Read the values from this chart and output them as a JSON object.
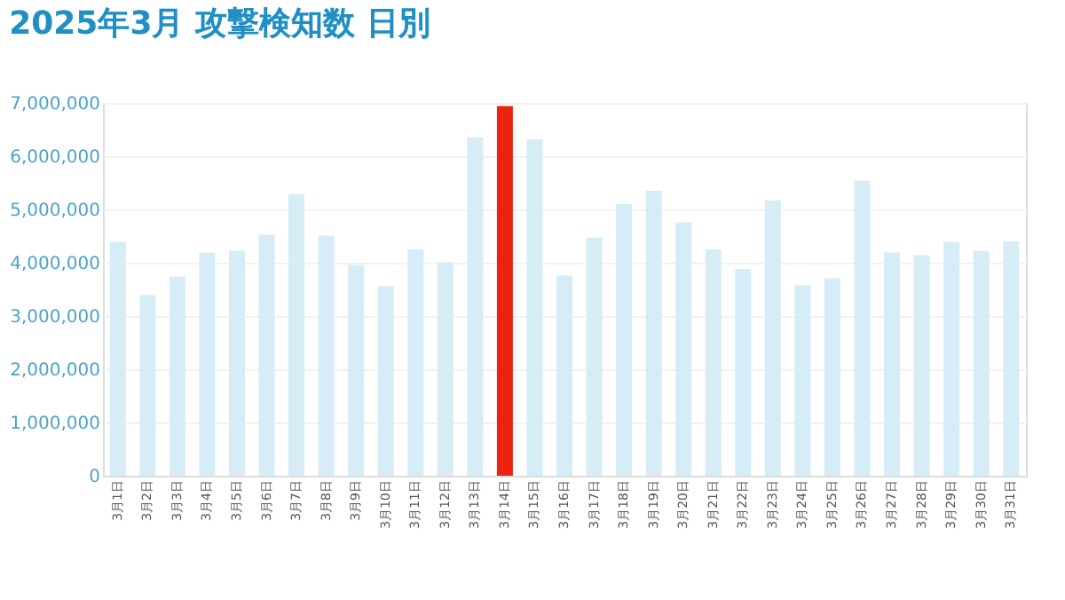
{
  "chart_data": {
    "type": "bar",
    "title": "2025年3月 攻撃検知数 日別",
    "categories": [
      "3月1日",
      "3月2日",
      "3月3日",
      "3月4日",
      "3月5日",
      "3月6日",
      "3月7日",
      "3月8日",
      "3月9日",
      "3月10日",
      "3月11日",
      "3月12日",
      "3月13日",
      "3月14日",
      "3月15日",
      "3月16日",
      "3月17日",
      "3月18日",
      "3月19日",
      "3月20日",
      "3月21日",
      "3月22日",
      "3月23日",
      "3月24日",
      "3月25日",
      "3月26日",
      "3月27日",
      "3月28日",
      "3月29日",
      "3月30日",
      "3月31日"
    ],
    "values": [
      4390000,
      3390000,
      3740000,
      4190000,
      4220000,
      4530000,
      5290000,
      4510000,
      3960000,
      3560000,
      4250000,
      4010000,
      6350000,
      6940000,
      6320000,
      3760000,
      4470000,
      5100000,
      5350000,
      4760000,
      4250000,
      3880000,
      5170000,
      3580000,
      3710000,
      5540000,
      4190000,
      4140000,
      4390000,
      4220000,
      4400000
    ],
    "colors": [
      "#d6ecf7",
      "#d6ecf7",
      "#d6ecf7",
      "#d6ecf7",
      "#d6ecf7",
      "#d6ecf7",
      "#d6ecf7",
      "#d6ecf7",
      "#d6ecf7",
      "#d6ecf7",
      "#d6ecf7",
      "#d6ecf7",
      "#d6ecf7",
      "#ee2211",
      "#d6ecf7",
      "#d6ecf7",
      "#d6ecf7",
      "#d6ecf7",
      "#d6ecf7",
      "#d6ecf7",
      "#d6ecf7",
      "#d6ecf7",
      "#d6ecf7",
      "#d6ecf7",
      "#d6ecf7",
      "#d6ecf7",
      "#d6ecf7",
      "#d6ecf7",
      "#d6ecf7",
      "#d6ecf7",
      "#d6ecf7"
    ],
    "ylim": [
      0,
      7000000
    ],
    "yticks": [
      0,
      {
        "value": 1000000,
        "label": "1,000,000"
      },
      {
        "value": 2000000,
        "label": "2,000,000"
      },
      {
        "value": 3000000,
        "label": "3,000,000"
      },
      {
        "value": 4000000,
        "label": "4,000,000"
      },
      {
        "value": 5000000,
        "label": "5,000,000"
      },
      {
        "value": 6000000,
        "label": "6,000,000"
      },
      {
        "value": 7000000,
        "label": "7,000,000"
      }
    ],
    "grid": "y"
  }
}
